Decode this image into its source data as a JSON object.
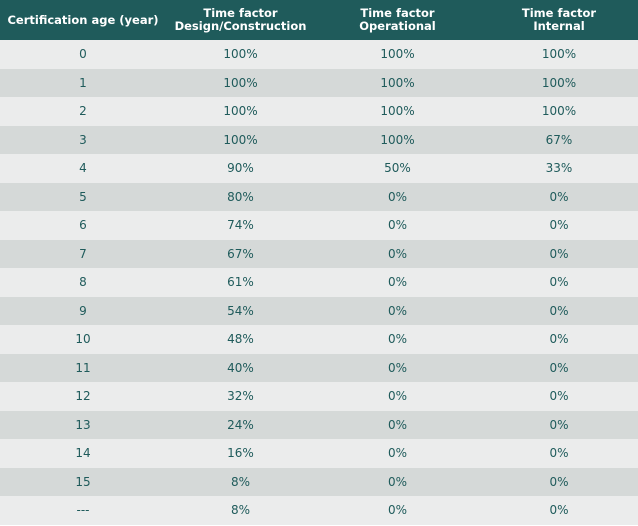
{
  "table": {
    "header": [
      [
        "Certification age (year)"
      ],
      [
        "Time factor",
        "Design/Construction"
      ],
      [
        "Time factor",
        "Operational"
      ],
      [
        "Time factor",
        "Internal"
      ]
    ],
    "rows": [
      [
        "0",
        "100%",
        "100%",
        "100%"
      ],
      [
        "1",
        "100%",
        "100%",
        "100%"
      ],
      [
        "2",
        "100%",
        "100%",
        "100%"
      ],
      [
        "3",
        "100%",
        "100%",
        "67%"
      ],
      [
        "4",
        "90%",
        "50%",
        "33%"
      ],
      [
        "5",
        "80%",
        "0%",
        "0%"
      ],
      [
        "6",
        "74%",
        "0%",
        "0%"
      ],
      [
        "7",
        "67%",
        "0%",
        "0%"
      ],
      [
        "8",
        "61%",
        "0%",
        "0%"
      ],
      [
        "9",
        "54%",
        "0%",
        "0%"
      ],
      [
        "10",
        "48%",
        "0%",
        "0%"
      ],
      [
        "11",
        "40%",
        "0%",
        "0%"
      ],
      [
        "12",
        "32%",
        "0%",
        "0%"
      ],
      [
        "13",
        "24%",
        "0%",
        "0%"
      ],
      [
        "14",
        "16%",
        "0%",
        "0%"
      ],
      [
        "15",
        "8%",
        "0%",
        "0%"
      ],
      [
        "---",
        "8%",
        "0%",
        "0%"
      ]
    ]
  }
}
